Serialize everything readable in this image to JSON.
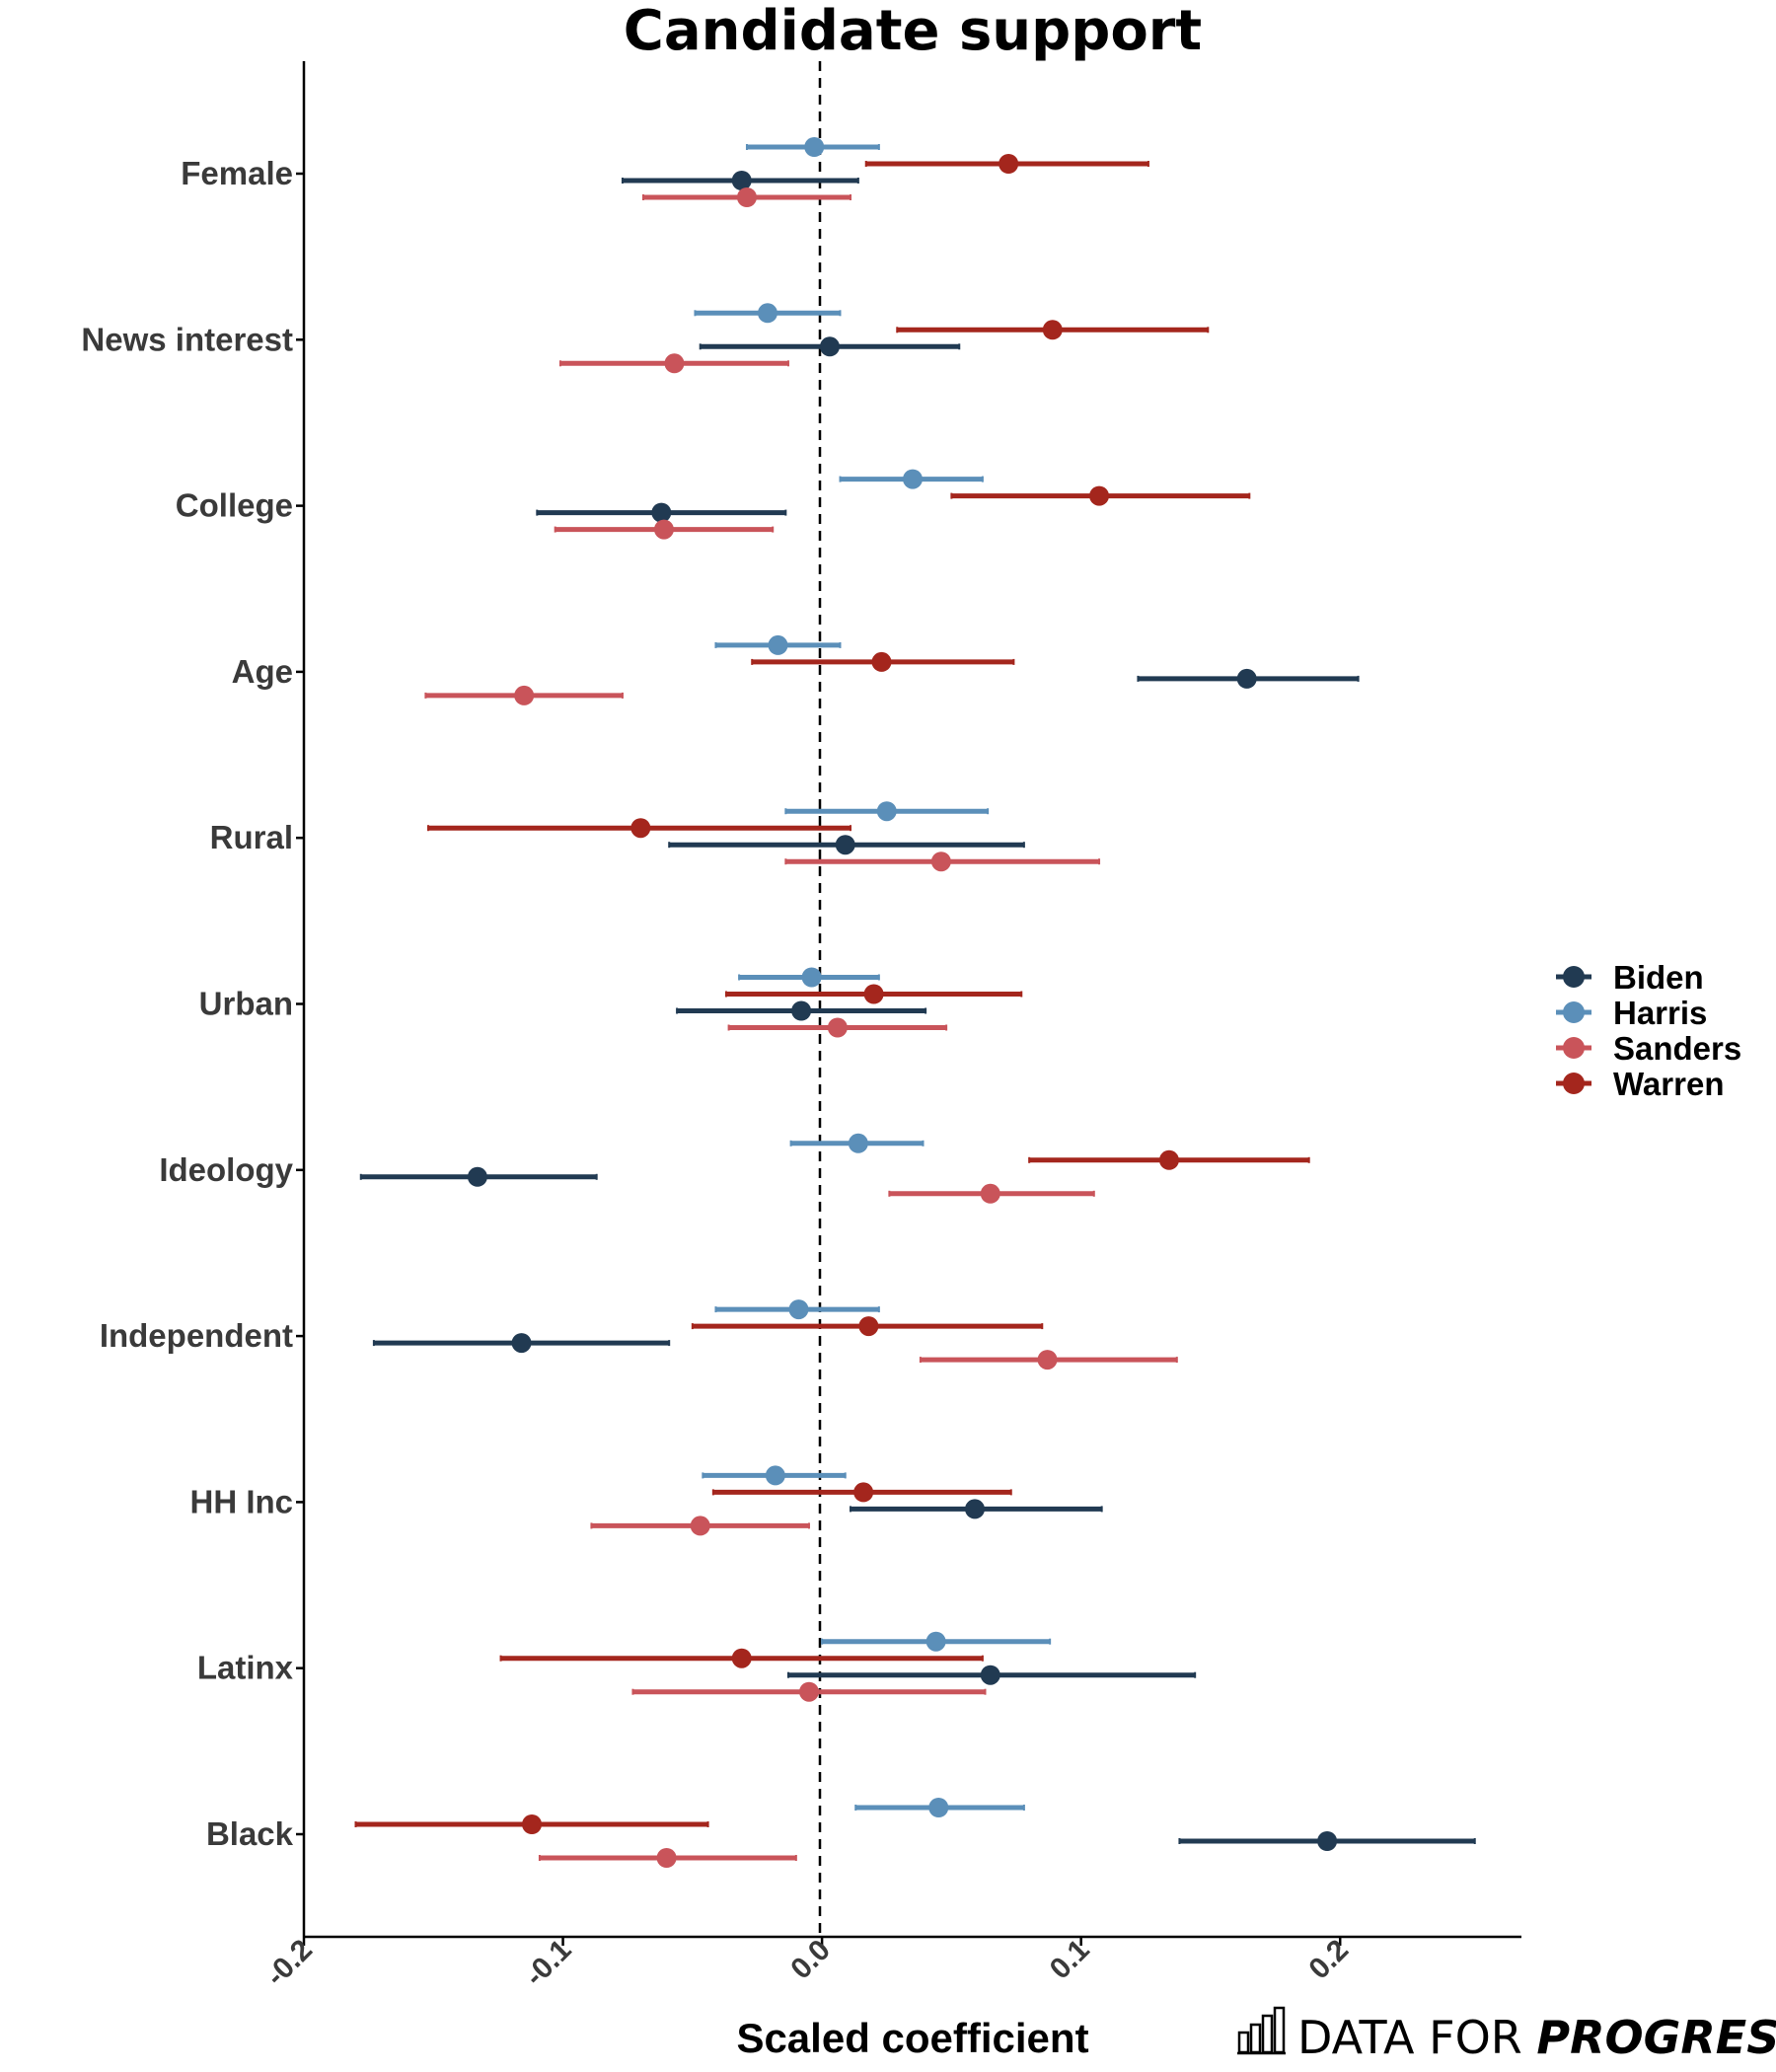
{
  "chart_data": {
    "type": "forest",
    "title": "Candidate support",
    "xlabel": "Scaled coefficient",
    "ylabel": "",
    "xlim": [
      -0.2,
      0.27
    ],
    "x_ticks": [
      -0.2,
      -0.1,
      0.0,
      0.1,
      0.2
    ],
    "x_tick_labels": [
      "-0.2",
      "-0.1",
      "0.0",
      "0.1",
      "0.2"
    ],
    "reference_line": 0,
    "legend_position": "right",
    "categories": [
      "Female",
      "News interest",
      "College",
      "Age",
      "Rural",
      "Urban",
      "Ideology",
      "Independent",
      "HH Inc",
      "Latinx",
      "Black"
    ],
    "series": [
      {
        "name": "Harris",
        "color": "#5b8fb9",
        "estimates": [
          -0.003,
          -0.021,
          0.035,
          -0.017,
          0.025,
          -0.004,
          0.014,
          -0.009,
          -0.018,
          0.044,
          0.045
        ],
        "lower": [
          -0.029,
          -0.049,
          0.007,
          -0.041,
          -0.014,
          -0.032,
          -0.012,
          -0.041,
          -0.046,
          0.0,
          0.013
        ],
        "upper": [
          0.022,
          0.007,
          0.062,
          0.007,
          0.064,
          0.022,
          0.039,
          0.022,
          0.009,
          0.088,
          0.078
        ]
      },
      {
        "name": "Warren",
        "color": "#a4261d",
        "estimates": [
          0.072,
          0.089,
          0.107,
          0.023,
          -0.07,
          0.02,
          0.134,
          0.018,
          0.016,
          -0.031,
          -0.112
        ],
        "lower": [
          0.017,
          0.029,
          0.05,
          -0.027,
          -0.152,
          -0.037,
          0.08,
          -0.05,
          -0.042,
          -0.124,
          -0.18
        ],
        "upper": [
          0.126,
          0.149,
          0.165,
          0.074,
          0.011,
          0.077,
          0.188,
          0.085,
          0.073,
          0.062,
          -0.044
        ]
      },
      {
        "name": "Biden",
        "color": "#213a52",
        "estimates": [
          -0.031,
          0.003,
          -0.062,
          0.164,
          0.009,
          -0.008,
          -0.133,
          -0.116,
          0.059,
          0.065,
          0.195
        ],
        "lower": [
          -0.077,
          -0.047,
          -0.11,
          0.122,
          -0.059,
          -0.056,
          -0.178,
          -0.173,
          0.011,
          -0.013,
          0.138
        ],
        "upper": [
          0.014,
          0.053,
          -0.014,
          0.207,
          0.078,
          0.04,
          -0.087,
          -0.059,
          0.108,
          0.144,
          0.252
        ]
      },
      {
        "name": "Sanders",
        "color": "#c9545a",
        "estimates": [
          -0.029,
          -0.057,
          -0.061,
          -0.115,
          0.046,
          0.006,
          0.065,
          0.087,
          -0.047,
          -0.005,
          -0.06
        ],
        "lower": [
          -0.069,
          -0.101,
          -0.103,
          -0.153,
          -0.014,
          -0.036,
          0.026,
          0.038,
          -0.089,
          -0.073,
          -0.109
        ],
        "upper": [
          0.011,
          -0.013,
          -0.019,
          -0.077,
          0.107,
          0.048,
          0.105,
          0.137,
          -0.005,
          0.063,
          -0.01
        ]
      }
    ],
    "legend_order": [
      "Biden",
      "Harris",
      "Sanders",
      "Warren"
    ]
  },
  "branding": {
    "logo_icon": "bar-chart-icon",
    "logo_text_regular": "DATA FOR ",
    "logo_text_italic": "PROGRESS"
  }
}
